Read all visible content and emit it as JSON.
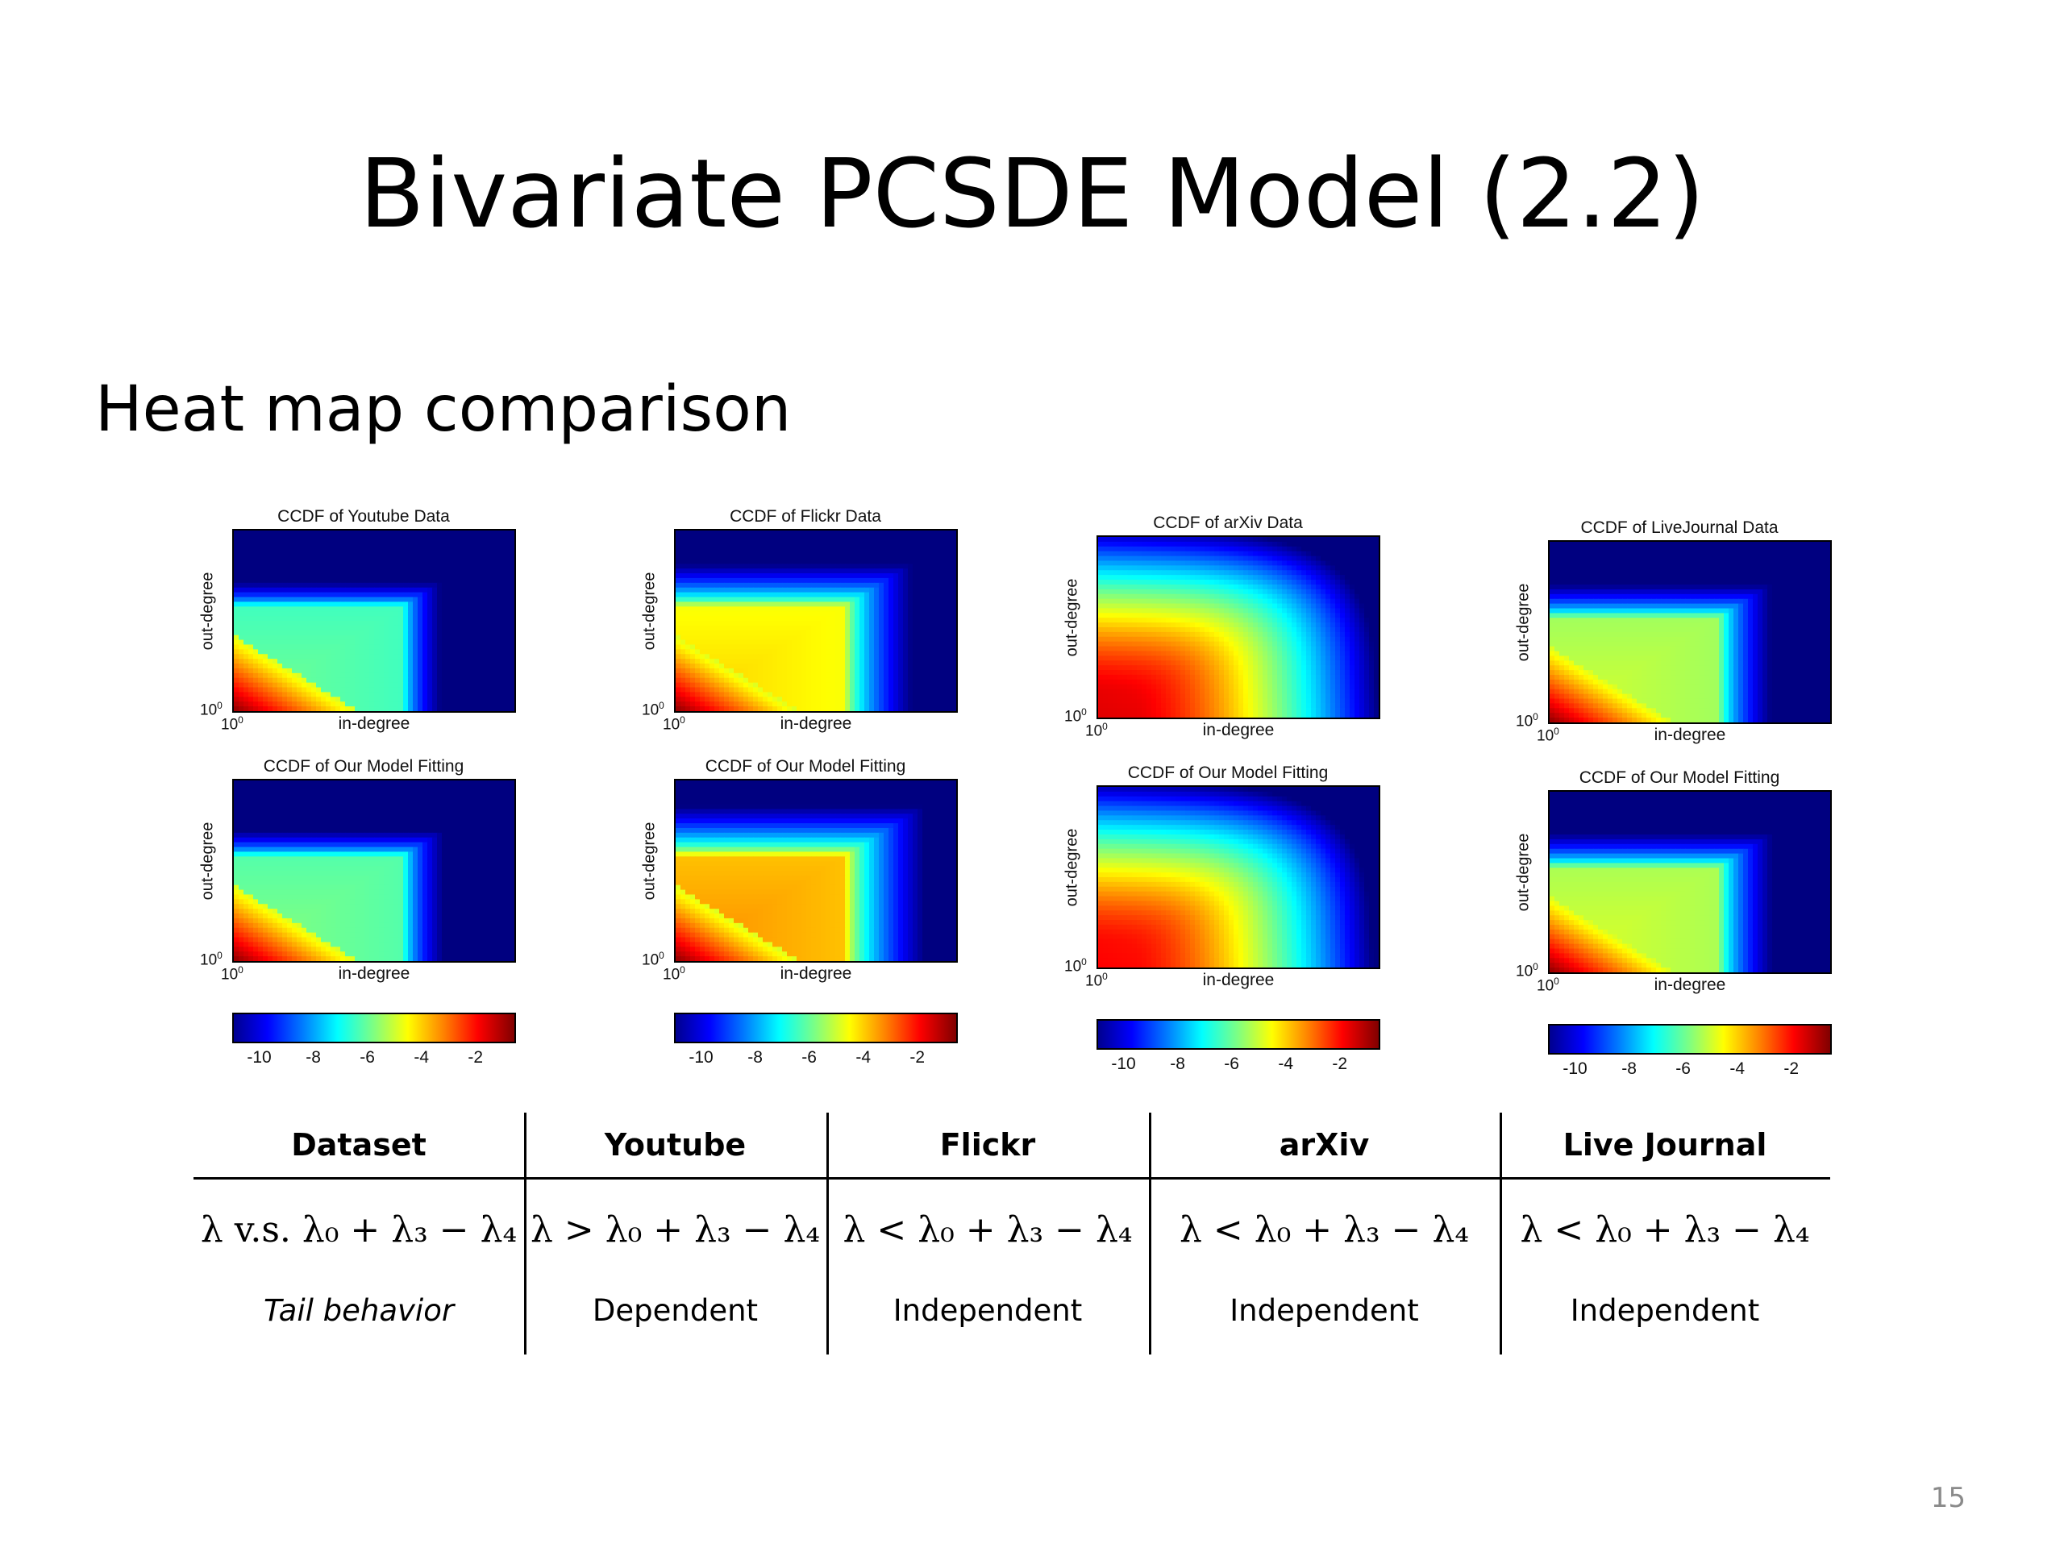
{
  "slide": {
    "title": "Bivariate PCSDE Model (2.2)",
    "subtitle": "Heat map comparison",
    "page_number": "15"
  },
  "colors": {
    "colormap": "jet",
    "text": "#000000",
    "page_number": "#8a8a8a"
  },
  "chart_data": [
    {
      "type": "heatmap",
      "title": "CCDF of Youtube Data",
      "xlabel": "in-degree",
      "ylabel": "out-degree",
      "x_tick": "10",
      "x_tick_exp": "0",
      "y_tick": "10",
      "y_tick_exp": "0",
      "shape": "triangle",
      "core_value": -5.8
    },
    {
      "type": "heatmap",
      "title": "CCDF of Our Model Fitting",
      "xlabel": "in-degree",
      "ylabel": "out-degree",
      "x_tick": "10",
      "x_tick_exp": "0",
      "y_tick": "10",
      "y_tick_exp": "0",
      "shape": "triangle",
      "core_value": -5.6,
      "colorbar": {
        "ticks": [
          "-10",
          "-8",
          "-6",
          "-4",
          "-2"
        ],
        "range": [
          -11,
          -0.5
        ]
      }
    },
    {
      "type": "heatmap",
      "title": "CCDF of Flickr Data",
      "xlabel": "in-degree",
      "ylabel": "out-degree",
      "x_tick": "10",
      "x_tick_exp": "0",
      "y_tick": "10",
      "y_tick_exp": "0",
      "shape": "triangle",
      "core_value": -3.9
    },
    {
      "type": "heatmap",
      "title": "CCDF of Our Model Fitting",
      "xlabel": "in-degree",
      "ylabel": "out-degree",
      "x_tick": "10",
      "x_tick_exp": "0",
      "y_tick": "10",
      "y_tick_exp": "0",
      "shape": "triangle",
      "core_value": -3.2,
      "colorbar": {
        "ticks": [
          "-10",
          "-8",
          "-6",
          "-4",
          "-2"
        ],
        "range": [
          -11,
          -0.5
        ]
      }
    },
    {
      "type": "heatmap",
      "title": "CCDF of arXiv Data",
      "xlabel": "in-degree",
      "ylabel": "out-degree",
      "x_tick": "10",
      "x_tick_exp": "0",
      "y_tick": "10",
      "y_tick_exp": "0",
      "shape": "rounded",
      "core_value": -1.5
    },
    {
      "type": "heatmap",
      "title": "CCDF of Our Model Fitting",
      "xlabel": "in-degree",
      "ylabel": "out-degree",
      "x_tick": "10",
      "x_tick_exp": "0",
      "y_tick": "10",
      "y_tick_exp": "0",
      "shape": "rounded",
      "core_value": -1.8,
      "colorbar": {
        "ticks": [
          "-10",
          "-8",
          "-6",
          "-4",
          "-2"
        ],
        "range": [
          -11,
          -0.5
        ]
      }
    },
    {
      "type": "heatmap",
      "title": "CCDF of LiveJournal Data",
      "xlabel": "in-degree",
      "ylabel": "out-degree",
      "x_tick": "10",
      "x_tick_exp": "0",
      "y_tick": "10",
      "y_tick_exp": "0",
      "shape": "triangle",
      "core_value": -4.8
    },
    {
      "type": "heatmap",
      "title": "CCDF of Our Model Fitting",
      "xlabel": "in-degree",
      "ylabel": "out-degree",
      "x_tick": "10",
      "x_tick_exp": "0",
      "y_tick": "10",
      "y_tick_exp": "0",
      "shape": "triangle",
      "core_value": -4.7,
      "colorbar": {
        "ticks": [
          "-10",
          "-8",
          "-6",
          "-4",
          "-2"
        ],
        "range": [
          -11,
          -0.5
        ]
      }
    }
  ],
  "table": {
    "headers": [
      "Dataset",
      "Youtube",
      "Flickr",
      "arXiv",
      "Live Journal"
    ],
    "condition_row": [
      "λ v.s. λ₀ + λ₃ − λ₄",
      "λ > λ₀ + λ₃ − λ₄",
      "λ < λ₀ + λ₃ − λ₄",
      "λ < λ₀ + λ₃ − λ₄",
      "λ < λ₀ + λ₃ − λ₄"
    ],
    "behavior_row": [
      "Tail behavior",
      "Dependent",
      "Independent",
      "Independent",
      "Independent"
    ]
  }
}
